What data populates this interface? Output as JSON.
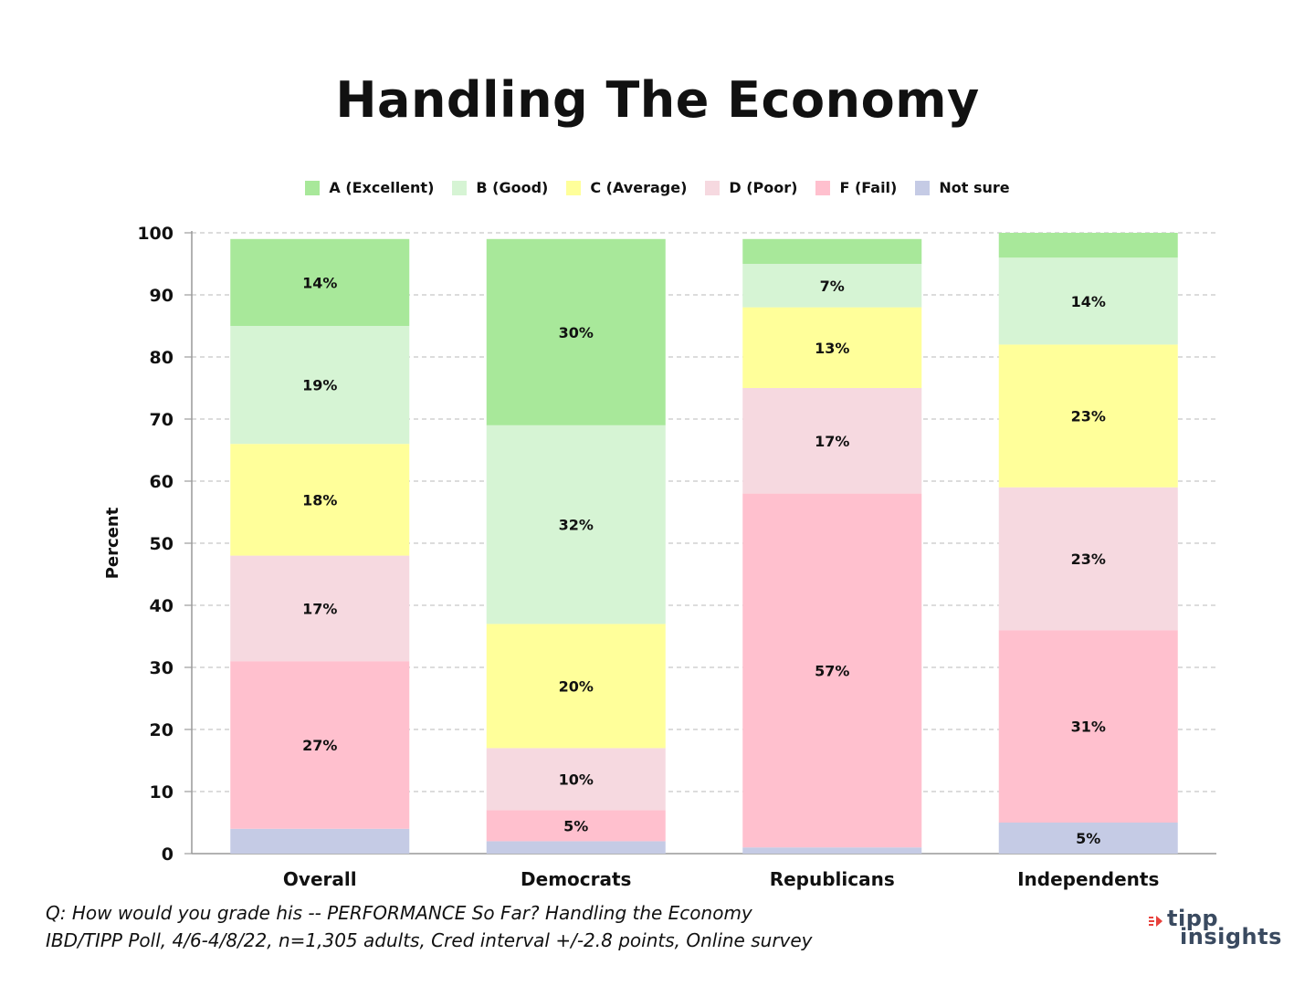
{
  "chart_data": {
    "type": "bar",
    "stacked": true,
    "title": "Handling The Economy",
    "ylabel": "Percent",
    "xlabel": "",
    "ylim": [
      0,
      100
    ],
    "yticks": [
      0,
      10,
      20,
      30,
      40,
      50,
      60,
      70,
      80,
      90,
      100
    ],
    "grid": true,
    "legend_position": "top-center",
    "categories": [
      "Overall",
      "Democrats",
      "Republicans",
      "Independents"
    ],
    "series": [
      {
        "name": "Not sure",
        "color": "#c5cbe5",
        "values": [
          4,
          2,
          1,
          5
        ],
        "labels": [
          "",
          "",
          "",
          "5%"
        ]
      },
      {
        "name": "F (Fail)",
        "color": "#ffc0ce",
        "values": [
          27,
          5,
          57,
          31
        ],
        "labels": [
          "27%",
          "5%",
          "57%",
          "31%"
        ]
      },
      {
        "name": "D (Poor)",
        "color": "#f6d9e0",
        "values": [
          17,
          10,
          17,
          23
        ],
        "labels": [
          "17%",
          "10%",
          "17%",
          "23%"
        ]
      },
      {
        "name": "C (Average)",
        "color": "#ffff9a",
        "values": [
          18,
          20,
          13,
          23
        ],
        "labels": [
          "18%",
          "20%",
          "13%",
          "23%"
        ]
      },
      {
        "name": "B (Good)",
        "color": "#d6f4d4",
        "values": [
          19,
          32,
          7,
          14
        ],
        "labels": [
          "19%",
          "32%",
          "7%",
          "14%"
        ]
      },
      {
        "name": "A (Excellent)",
        "color": "#a8e89a",
        "values": [
          14,
          30,
          4,
          4
        ],
        "labels": [
          "14%",
          "30%",
          "",
          ""
        ]
      }
    ],
    "legend_order": [
      "A (Excellent)",
      "B (Good)",
      "C (Average)",
      "D (Poor)",
      "F (Fail)",
      "Not sure"
    ]
  },
  "footnote": {
    "line1": "Q:  How would you grade his -- PERFORMANCE So Far? Handling the Economy",
    "line2": "IBD/TIPP Poll, 4/6-4/8/22, n=1,305 adults, Cred interval +/-2.8 points, Online survey"
  },
  "logo": {
    "line1": "tipp",
    "line2": "insights",
    "accent_color": "#e8413c",
    "text_color": "#3a4a60"
  }
}
